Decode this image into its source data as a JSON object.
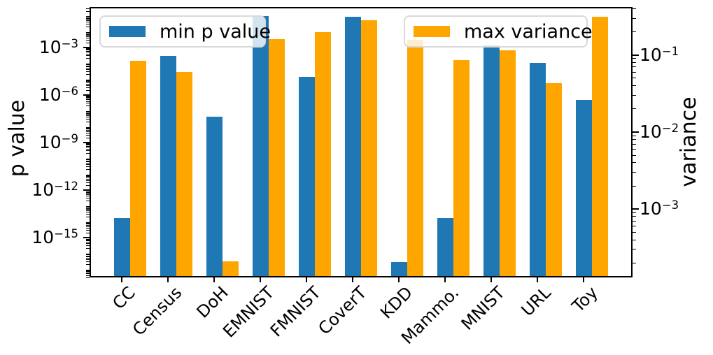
{
  "figure": {
    "background": "#ffffff",
    "plot_border_color": "#000000"
  },
  "chart_data": {
    "type": "bar",
    "title": "",
    "grid": false,
    "categories": [
      "CC",
      "Census",
      "DoH",
      "EMNIST",
      "FMNIST",
      "CoverT",
      "KDD",
      "Mammo.",
      "MNIST",
      "URL",
      "Toy"
    ],
    "series": [
      {
        "name": "min p value",
        "axis": "left",
        "color": "#1f77b4",
        "values": [
          1.4e-14,
          0.00024,
          3.5e-08,
          0.08,
          1.2e-05,
          0.07,
          2.2e-17,
          1.4e-14,
          0.0011,
          8.7e-05,
          4e-07
        ]
      },
      {
        "name": "max variance",
        "axis": "right",
        "color": "#ffa500",
        "values": [
          0.08,
          0.058,
          0.0002,
          0.155,
          0.19,
          0.27,
          0.15,
          0.083,
          0.11,
          0.041,
          0.3
        ]
      }
    ],
    "left_axis": {
      "label": "p value",
      "scale": "log",
      "ylim": [
        3e-18,
        0.37
      ],
      "tick_exponents": [
        -3,
        -6,
        -9,
        -12,
        -15
      ]
    },
    "right_axis": {
      "label": "variance",
      "scale": "log",
      "ylim": [
        0.00013,
        0.42
      ],
      "tick_exponents": [
        -1,
        -2,
        -3
      ]
    },
    "legend_position": "top-left and top-right inside plot",
    "x_tick_rotation_deg": 45
  }
}
